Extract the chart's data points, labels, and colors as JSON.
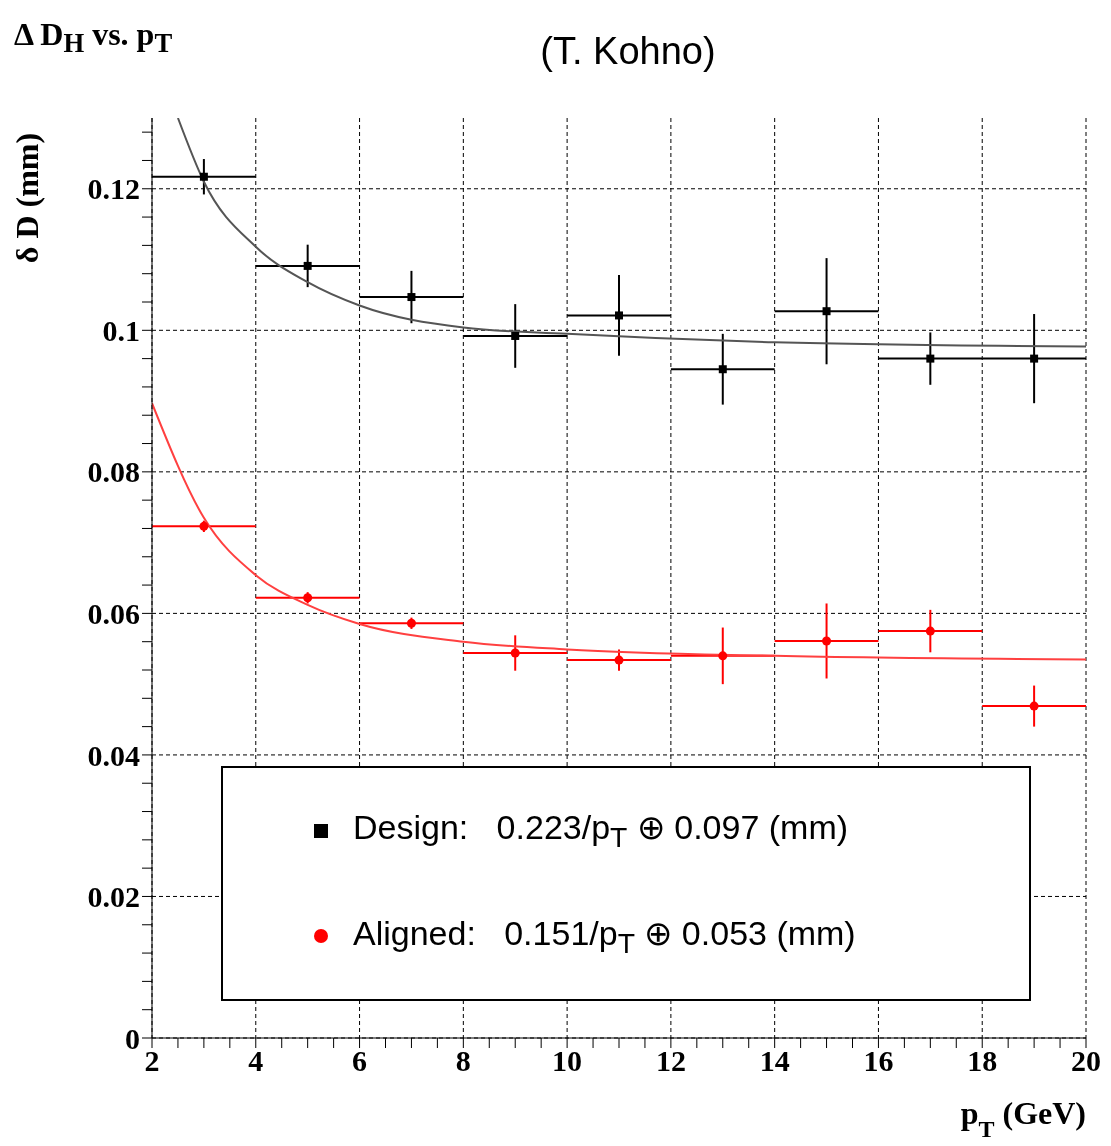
{
  "chart_data": {
    "type": "scatter",
    "title": "Δ D$_{H}$ vs. p$_{T}$",
    "subtitle": "(T. Kohno)",
    "xlabel": "p$_{T}$ (GeV)",
    "ylabel": "δ D (mm)",
    "xlim": [
      2,
      20
    ],
    "xticks": [
      2,
      {
        "value": 2.5,
        "label": null
      },
      {
        "value": 3,
        "label": null
      },
      {
        "value": 3.5,
        "label": null
      },
      4,
      {
        "value": 4.5,
        "label": null
      },
      {
        "value": 5,
        "label": null
      },
      {
        "value": 5.5,
        "label": null
      },
      6,
      {
        "value": 6.5,
        "label": null
      },
      {
        "value": 7,
        "label": null
      },
      {
        "value": 7.5,
        "label": null
      },
      8,
      {
        "value": 8.5,
        "label": null
      },
      {
        "value": 9,
        "label": null
      },
      {
        "value": 9.5,
        "label": null
      },
      10,
      {
        "value": 10.5,
        "label": null
      },
      {
        "value": 11,
        "label": null
      },
      {
        "value": 11.5,
        "label": null
      },
      12,
      {
        "value": 12.5,
        "label": null
      },
      {
        "value": 13,
        "label": null
      },
      {
        "value": 13.5,
        "label": null
      },
      14,
      {
        "value": 14.5,
        "label": null
      },
      {
        "value": 15,
        "label": null
      },
      {
        "value": 15.5,
        "label": null
      },
      16,
      {
        "value": 16.5,
        "label": null
      },
      {
        "value": 17,
        "label": null
      },
      {
        "value": 17.5,
        "label": null
      },
      18,
      {
        "value": 18.5,
        "label": null
      },
      {
        "value": 19,
        "label": null
      },
      {
        "value": 19.5,
        "label": null
      },
      20
    ],
    "ylim": [
      0,
      0.13
    ],
    "yticks": [
      0,
      {
        "value": 0.004,
        "label": null
      },
      {
        "value": 0.008,
        "label": null
      },
      {
        "value": 0.012,
        "label": null
      },
      {
        "value": 0.016,
        "label": null
      },
      0.02,
      {
        "value": 0.024,
        "label": null
      },
      {
        "value": 0.028,
        "label": null
      },
      {
        "value": 0.032,
        "label": null
      },
      {
        "value": 0.036,
        "label": null
      },
      0.04,
      {
        "value": 0.044,
        "label": null
      },
      {
        "value": 0.048,
        "label": null
      },
      {
        "value": 0.052,
        "label": null
      },
      {
        "value": 0.056,
        "label": null
      },
      0.06,
      {
        "value": 0.064,
        "label": null
      },
      {
        "value": 0.068,
        "label": null
      },
      {
        "value": 0.072,
        "label": null
      },
      {
        "value": 0.076,
        "label": null
      },
      0.08,
      {
        "value": 0.084,
        "label": null
      },
      {
        "value": 0.088,
        "label": null
      },
      {
        "value": 0.092,
        "label": null
      },
      {
        "value": 0.096,
        "label": null
      },
      0.1,
      {
        "value": 0.104,
        "label": null
      },
      {
        "value": 0.108,
        "label": null
      },
      {
        "value": 0.112,
        "label": null
      },
      {
        "value": 0.116,
        "label": null
      },
      0.12,
      {
        "value": 0.124,
        "label": null
      },
      {
        "value": 0.128,
        "label": null
      }
    ],
    "grid": true,
    "legend": "bottom",
    "line_style": "solid",
    "series": [
      {
        "name": "Design:   0.223/p$_{T}$ ⊕ 0.097 (mm)",
        "color": "#000000",
        "marker": "square",
        "x": [
          3,
          5,
          7,
          9,
          11,
          13,
          15,
          17,
          19
        ],
        "values": [
          0.1217,
          0.1091,
          0.1047,
          0.0992,
          0.1021,
          0.0945,
          0.1027,
          0.096,
          0.096
        ],
        "errors": [
          0.0025,
          0.003,
          0.0037,
          0.0045,
          0.0057,
          0.005,
          0.0075,
          0.0037,
          0.0063
        ],
        "xerrors": [
          1,
          1,
          1,
          1,
          1,
          1,
          1,
          1,
          1
        ]
      },
      {
        "name": "Aligned:   0.151/p$_{T}$ ⊕ 0.053 (mm)",
        "color": "#ff0000",
        "marker": "circle",
        "x": [
          3,
          5,
          7,
          9,
          11,
          13,
          15,
          17,
          19
        ],
        "values": [
          0.0723,
          0.0622,
          0.0586,
          0.0544,
          0.0534,
          0.054,
          0.0561,
          0.0575,
          0.0469
        ],
        "errors": [
          0.0008,
          0.0008,
          0.0008,
          0.0025,
          0.0015,
          0.004,
          0.0053,
          0.003,
          0.0029
        ],
        "xerrors": [
          1,
          1,
          1,
          1,
          1,
          1,
          1,
          1,
          1
        ]
      },
      {
        "type": "line",
        "color": "#555555",
        "marker": "none",
        "x": [
          2.5,
          3,
          4,
          5,
          6,
          8,
          10,
          14,
          20
        ],
        "values": [
          0.13,
          0.121,
          0.1118,
          0.1068,
          0.1035,
          0.1004,
          0.0995,
          0.0983,
          0.0977
        ]
      },
      {
        "type": "line",
        "color": "#ff4040",
        "marker": "none",
        "x": [
          2,
          3,
          4,
          5,
          6,
          8,
          10,
          14,
          20
        ],
        "values": [
          0.0897,
          0.0735,
          0.0654,
          0.0612,
          0.0585,
          0.056,
          0.0549,
          0.054,
          0.0535
        ]
      }
    ]
  }
}
